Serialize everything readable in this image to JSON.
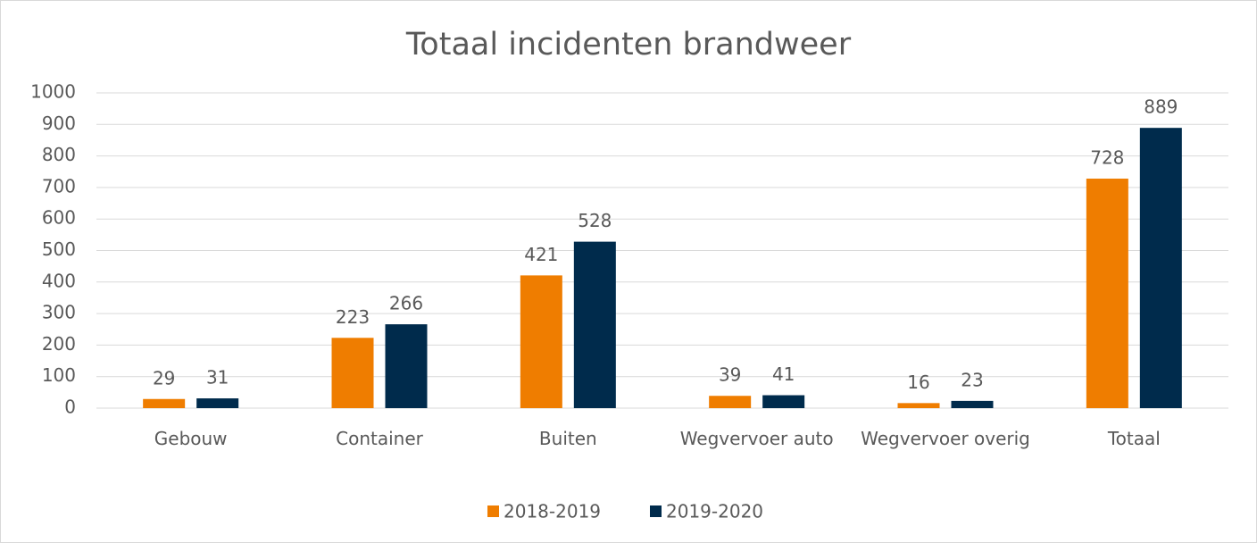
{
  "chart_data": {
    "type": "bar",
    "title": "Totaal incidenten brandweer",
    "categories": [
      "Gebouw",
      "Container",
      "Buiten",
      "Wegvervoer auto",
      "Wegvervoer overig",
      "Totaal"
    ],
    "series": [
      {
        "name": "2018-2019",
        "color": "#ef7d00",
        "values": [
          29,
          223,
          421,
          39,
          16,
          728
        ]
      },
      {
        "name": "2019-2020",
        "color": "#002b4c",
        "values": [
          31,
          266,
          528,
          41,
          23,
          889
        ]
      }
    ],
    "ylim": [
      0,
      1000
    ],
    "yticks": [
      0,
      100,
      200,
      300,
      400,
      500,
      600,
      700,
      800,
      900,
      1000
    ],
    "grid": true,
    "legend": "bottom"
  }
}
